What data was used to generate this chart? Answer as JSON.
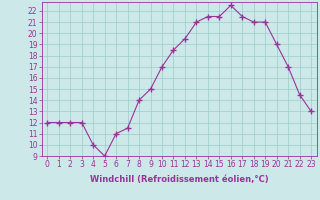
{
  "x": [
    0,
    1,
    2,
    3,
    4,
    5,
    6,
    7,
    8,
    9,
    10,
    11,
    12,
    13,
    14,
    15,
    16,
    17,
    18,
    19,
    20,
    21,
    22,
    23
  ],
  "y": [
    12,
    12,
    12,
    12,
    10,
    9,
    11,
    11.5,
    14,
    15,
    17,
    18.5,
    19.5,
    21,
    21.5,
    21.5,
    22.5,
    21.5,
    21,
    21,
    19,
    17,
    14.5,
    13
  ],
  "xlabel": "Windchill (Refroidissement éolien,°C)",
  "xticks": [
    0,
    1,
    2,
    3,
    4,
    5,
    6,
    7,
    8,
    9,
    10,
    11,
    12,
    13,
    14,
    15,
    16,
    17,
    18,
    19,
    20,
    21,
    22,
    23
  ],
  "yticks": [
    9,
    10,
    11,
    12,
    13,
    14,
    15,
    16,
    17,
    18,
    19,
    20,
    21,
    22
  ],
  "ylim": [
    9,
    22.8
  ],
  "xlim": [
    -0.5,
    23.5
  ],
  "line_color": "#993399",
  "marker_color": "#993399",
  "bg_color": "#cce8e8",
  "grid_color": "#99cccc",
  "axis_color": "#993399",
  "tick_color": "#993399",
  "label_color": "#993399",
  "tick_fontsize": 5.5,
  "xlabel_fontsize": 6.0
}
